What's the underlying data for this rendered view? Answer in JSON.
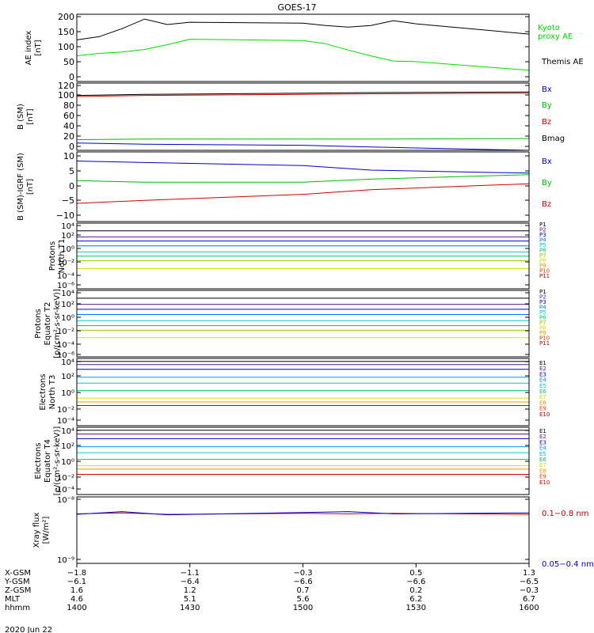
{
  "title": "GOES-17",
  "date": "2020 Jun 22",
  "panels": [
    {
      "id": "ae",
      "ylabel": [
        "AE index",
        "[nT]"
      ],
      "ticks": [
        "0",
        "50",
        "100",
        "150",
        "200"
      ],
      "legend": [
        {
          "text": "Kyoto",
          "color": "#00dd00"
        },
        {
          "text": "proxy AE",
          "color": "#00dd00"
        },
        {
          "text": "Themis AE",
          "color": "#000000"
        }
      ]
    },
    {
      "id": "bsm",
      "ylabel": [
        "B (SM)",
        "[nT]"
      ],
      "ticks": [
        "0",
        "20",
        "40",
        "60",
        "80",
        "100",
        "120"
      ],
      "legend": [
        {
          "text": "Bx",
          "color": "#0000cc"
        },
        {
          "text": "By",
          "color": "#00bb00"
        },
        {
          "text": "Bz",
          "color": "#cc0000"
        },
        {
          "text": "Bmag",
          "color": "#000000"
        }
      ]
    },
    {
      "id": "bigrf",
      "ylabel": [
        "B (SM)-IGRF (SM)",
        "[nT]"
      ],
      "ticks": [
        "−10",
        "−5",
        "0",
        "5",
        "10"
      ],
      "legend": [
        {
          "text": "Bx",
          "color": "#0000cc"
        },
        {
          "text": "By",
          "color": "#00bb00"
        },
        {
          "text": "Bz",
          "color": "#cc0000"
        }
      ]
    },
    {
      "id": "pnorth",
      "ylabel": [
        "Protons",
        "North T1"
      ],
      "ticks": [
        "10⁴",
        "10²",
        "10⁰",
        "10⁻²",
        "10⁻⁴",
        "10⁻⁶"
      ],
      "legend": [
        {
          "text": "P1",
          "color": "#000000"
        },
        {
          "text": "P2",
          "color": "#551a8b"
        },
        {
          "text": "P3",
          "color": "#0000cc"
        },
        {
          "text": "P4",
          "color": "#0077ff"
        },
        {
          "text": "P5",
          "color": "#00cccc"
        },
        {
          "text": "P6",
          "color": "#00cc66"
        },
        {
          "text": "P7",
          "color": "#99cc00"
        },
        {
          "text": "P8",
          "color": "#dddd00"
        },
        {
          "text": "P9",
          "color": "#ee9900"
        },
        {
          "text": "P10",
          "color": "#dd4400"
        },
        {
          "text": "P11",
          "color": "#cc0000"
        }
      ]
    },
    {
      "id": "pequator",
      "ylabel": [
        "Protons",
        "Equator T2",
        "[p/(cm²-s-sr-keV)]"
      ],
      "ticks": [
        "10⁴",
        "10²",
        "10⁰",
        "10⁻²",
        "10⁻⁴",
        "10⁻⁶"
      ],
      "legend": [
        {
          "text": "P1",
          "color": "#000000"
        },
        {
          "text": "P2",
          "color": "#551a8b"
        },
        {
          "text": "P3",
          "color": "#0000cc"
        },
        {
          "text": "P4",
          "color": "#0077ff"
        },
        {
          "text": "P5",
          "color": "#00cccc"
        },
        {
          "text": "P6",
          "color": "#00cc66"
        },
        {
          "text": "P7",
          "color": "#99cc00"
        },
        {
          "text": "P8",
          "color": "#dddd00"
        },
        {
          "text": "P9",
          "color": "#ee9900"
        },
        {
          "text": "P10",
          "color": "#dd4400"
        },
        {
          "text": "P11",
          "color": "#cc0000"
        }
      ]
    },
    {
      "id": "enorth",
      "ylabel": [
        "Electrons",
        "North T3"
      ],
      "ticks": [
        "10⁴",
        "10²",
        "10⁰",
        "10⁻²",
        "10⁻⁴"
      ],
      "legend": [
        {
          "text": "E1",
          "color": "#000000"
        },
        {
          "text": "E2",
          "color": "#551a8b"
        },
        {
          "text": "E3",
          "color": "#0000cc"
        },
        {
          "text": "E4",
          "color": "#0099ff"
        },
        {
          "text": "E5",
          "color": "#00cccc"
        },
        {
          "text": "E6",
          "color": "#00cc66"
        },
        {
          "text": "E7",
          "color": "#dddd00"
        },
        {
          "text": "E8",
          "color": "#ee9900"
        },
        {
          "text": "E9",
          "color": "#dd4400"
        },
        {
          "text": "E10",
          "color": "#cc0000"
        }
      ]
    },
    {
      "id": "eequator",
      "ylabel": [
        "Electrons",
        "Equator T4",
        "[e/(cm²-s-sr-keV)]"
      ],
      "ticks": [
        "10⁴",
        "10²",
        "10⁰",
        "10⁻²",
        "10⁻⁴"
      ],
      "legend": [
        {
          "text": "E1",
          "color": "#000000"
        },
        {
          "text": "E2",
          "color": "#551a8b"
        },
        {
          "text": "E3",
          "color": "#0000cc"
        },
        {
          "text": "E4",
          "color": "#0099ff"
        },
        {
          "text": "E5",
          "color": "#00cccc"
        },
        {
          "text": "E6",
          "color": "#00cc66"
        },
        {
          "text": "E7",
          "color": "#dddd00"
        },
        {
          "text": "E8",
          "color": "#ee9900"
        },
        {
          "text": "E9",
          "color": "#dd4400"
        },
        {
          "text": "E10",
          "color": "#cc0000"
        }
      ]
    },
    {
      "id": "xray",
      "ylabel": [
        "Xray flux",
        "[W/m²]"
      ],
      "ticks": [
        "10⁻⁸",
        "10⁻⁹"
      ],
      "legend": [
        {
          "text": "0.1−0.8 nm",
          "color": "#cc0000"
        },
        {
          "text": "0.05−0.4 nm",
          "color": "#0000cc"
        }
      ]
    }
  ],
  "x_axis": {
    "row_labels": [
      "X-GSM",
      "Y-GSM",
      "Z-GSM",
      "MLT",
      "hhmm"
    ],
    "columns": [
      [
        "−1.8",
        "−6.1",
        "1.6",
        "4.6",
        "1400"
      ],
      [
        "−1.1",
        "−6.4",
        "1.2",
        "5.1",
        "1430"
      ],
      [
        "−0.3",
        "−6.6",
        "0.7",
        "5.6",
        "1500"
      ],
      [
        "0.5",
        "−6.6",
        "0.2",
        "6.2",
        "1530"
      ],
      [
        "1.3",
        "−6.5",
        "−0.3",
        "6.7",
        "1600"
      ]
    ]
  },
  "chart_data": [
    {
      "type": "line",
      "title": "GOES-17",
      "ylabel": "AE index [nT]",
      "ylim": [
        0,
        210
      ],
      "x": [
        1400,
        1410,
        1420,
        1430,
        1440,
        1450,
        1500,
        1510,
        1520,
        1530,
        1540,
        1550,
        1600
      ],
      "series": [
        {
          "name": "Themis AE",
          "color": "#000000",
          "values": [
            130,
            140,
            165,
            195,
            178,
            185,
            182,
            175,
            170,
            175,
            190,
            180,
            148
          ]
        },
        {
          "name": "Kyoto proxy AE",
          "color": "#00dd00",
          "values": [
            80,
            88,
            92,
            100,
            115,
            132,
            128,
            118,
            98,
            80,
            64,
            62,
            35
          ]
        }
      ]
    },
    {
      "type": "line",
      "ylabel": "B (SM) [nT]",
      "ylim": [
        0,
        120
      ],
      "x": [
        1400,
        1430,
        1500,
        1530,
        1600
      ],
      "series": [
        {
          "name": "Bx",
          "color": "#0000cc",
          "values": [
            13,
            11,
            9,
            6,
            0
          ]
        },
        {
          "name": "By",
          "color": "#00bb00",
          "values": [
            19,
            20,
            20,
            20,
            21
          ]
        },
        {
          "name": "Bz",
          "color": "#cc0000",
          "values": [
            96,
            98,
            100,
            101,
            102
          ]
        },
        {
          "name": "Bmag",
          "color": "#000000",
          "values": [
            98,
            100,
            102,
            103,
            104
          ]
        }
      ]
    },
    {
      "type": "line",
      "ylabel": "B (SM)-IGRF (SM) [nT]",
      "ylim": [
        -12,
        11
      ],
      "x": [
        1400,
        1430,
        1500,
        1530,
        1600
      ],
      "series": [
        {
          "name": "Bx",
          "color": "#0000cc",
          "values": [
            8,
            7.5,
            6.5,
            5,
            4
          ]
        },
        {
          "name": "By",
          "color": "#00bb00",
          "values": [
            1.5,
            1,
            1,
            2,
            3.5
          ]
        },
        {
          "name": "Bz",
          "color": "#cc0000",
          "values": [
            -6,
            -5,
            -3,
            -1.5,
            0.5
          ]
        }
      ]
    },
    {
      "type": "line",
      "ylabel": "Protons North T1",
      "log": true,
      "ylim_exp": [
        -6.7,
        4.3
      ],
      "x": [
        1400,
        1600
      ],
      "series": [
        {
          "name": "P1",
          "color": "#000000",
          "values": [
            1000,
            1000
          ]
        },
        {
          "name": "P2",
          "color": "#551a8b",
          "values": [
            100,
            100
          ]
        },
        {
          "name": "P3",
          "color": "#0000cc",
          "values": [
            20,
            20
          ]
        },
        {
          "name": "P4",
          "color": "#0077ff",
          "values": [
            3,
            3
          ]
        },
        {
          "name": "P5",
          "color": "#00cccc",
          "values": [
            0.3,
            0.3
          ]
        },
        {
          "name": "P6",
          "color": "#00cc66",
          "values": [
            0.06,
            0.06
          ]
        },
        {
          "name": "P7",
          "color": "#99cc00",
          "values": [
            0.01,
            0.01
          ]
        },
        {
          "name": "P8",
          "color": "#dddd00",
          "values": [
            0.0005,
            0.0005
          ]
        }
      ]
    },
    {
      "type": "line",
      "ylabel": "Protons Equator T2 [p/(cm²-s-sr-keV)]",
      "log": true,
      "ylim_exp": [
        -6.7,
        4.3
      ],
      "x": [
        1400,
        1600
      ],
      "series": [
        {
          "name": "P1",
          "color": "#000000",
          "values": [
            1000,
            1000
          ]
        },
        {
          "name": "P2",
          "color": "#551a8b",
          "values": [
            100,
            100
          ]
        },
        {
          "name": "P3",
          "color": "#0000cc",
          "values": [
            15,
            15
          ]
        },
        {
          "name": "P4",
          "color": "#0077ff",
          "values": [
            2,
            2
          ]
        },
        {
          "name": "P5",
          "color": "#00cccc",
          "values": [
            0.2,
            0.2
          ]
        },
        {
          "name": "P6",
          "color": "#00cc66",
          "values": [
            0.03,
            0.03
          ]
        },
        {
          "name": "P7",
          "color": "#99cc00",
          "values": [
            0.005,
            0.005
          ]
        },
        {
          "name": "P8",
          "color": "#dddd00",
          "values": [
            0.0003,
            0.0003
          ]
        }
      ]
    },
    {
      "type": "line",
      "ylabel": "Electrons North T3",
      "log": true,
      "ylim_exp": [
        -4.7,
        4.3
      ],
      "x": [
        1400,
        1600
      ],
      "series": [
        {
          "name": "E1",
          "color": "#000000",
          "values": [
            8000,
            8000
          ]
        },
        {
          "name": "E2",
          "color": "#551a8b",
          "values": [
            3000,
            3000
          ]
        },
        {
          "name": "E3",
          "color": "#0000cc",
          "values": [
            700,
            700
          ]
        },
        {
          "name": "E4",
          "color": "#0099ff",
          "values": [
            60,
            60
          ]
        },
        {
          "name": "E5",
          "color": "#00cccc",
          "values": [
            10,
            10
          ]
        },
        {
          "name": "E6",
          "color": "#00cc66",
          "values": [
            1,
            1
          ]
        },
        {
          "name": "E7",
          "color": "#dddd00",
          "values": [
            0.1,
            0.1
          ]
        },
        {
          "name": "E8",
          "color": "#ee9900",
          "values": [
            0.03,
            0.03
          ]
        },
        {
          "name": "E10",
          "color": "#cc0000",
          "values": [
            0.01,
            0.01
          ]
        }
      ]
    },
    {
      "type": "line",
      "ylabel": "Electrons Equator T4 [e/(cm²-s-sr-keV)]",
      "log": true,
      "ylim_exp": [
        -4.7,
        4.3
      ],
      "x": [
        1400,
        1600
      ],
      "series": [
        {
          "name": "E1",
          "color": "#000000",
          "values": [
            8000,
            8000
          ]
        },
        {
          "name": "E2",
          "color": "#551a8b",
          "values": [
            2500,
            2500
          ]
        },
        {
          "name": "E3",
          "color": "#0000cc",
          "values": [
            600,
            600
          ]
        },
        {
          "name": "E4",
          "color": "#0099ff",
          "values": [
            50,
            50
          ]
        },
        {
          "name": "E5",
          "color": "#00cccc",
          "values": [
            8,
            8
          ]
        },
        {
          "name": "E6",
          "color": "#00cc66",
          "values": [
            1,
            1
          ]
        },
        {
          "name": "E7",
          "color": "#dddd00",
          "values": [
            0.15,
            0.15
          ]
        },
        {
          "name": "E8",
          "color": "#ee9900",
          "values": [
            0.05,
            0.05
          ]
        },
        {
          "name": "E10",
          "color": "#cc0000",
          "values": [
            0.01,
            0.01
          ]
        }
      ]
    },
    {
      "type": "line",
      "ylabel": "Xray flux [W/m²]",
      "log": true,
      "ylim_exp": [
        -10,
        -8
      ],
      "x": [
        1400,
        1420,
        1440,
        1500,
        1520,
        1540,
        1600
      ],
      "series": [
        {
          "name": "0.1−0.8 nm",
          "color": "#cc0000",
          "values": [
            3.1e-09,
            3.3e-09,
            3e-09,
            3.2e-09,
            3.1e-09,
            3.2e-09,
            3e-09
          ]
        },
        {
          "name": "0.05−0.4 nm",
          "color": "#0000cc",
          "values": [
            3e-09,
            3.6e-09,
            2.9e-09,
            3.4e-09,
            3.6e-09,
            3.1e-09,
            3.3e-09
          ]
        }
      ]
    }
  ]
}
